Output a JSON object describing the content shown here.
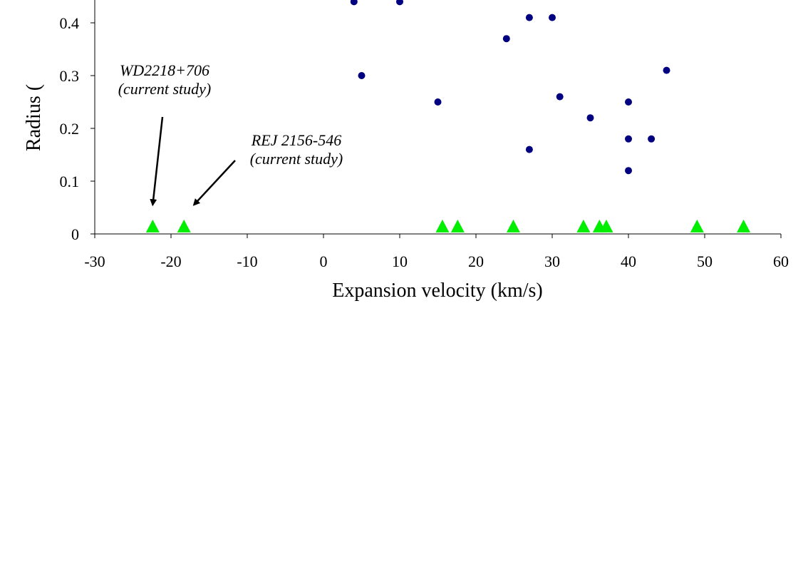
{
  "chart_data": {
    "type": "scatter",
    "title": "",
    "xlabel": "Expansion velocity (km/s)",
    "ylabel": "Radius (",
    "xlim": [
      -30,
      60
    ],
    "ylim": [
      0,
      0.45
    ],
    "x_ticks": [
      -30,
      -20,
      -10,
      0,
      10,
      20,
      30,
      40,
      50,
      60
    ],
    "x_tick_labels": [
      "-30",
      "-20",
      "-10",
      "0",
      "10",
      "20",
      "30",
      "40",
      "50",
      "60"
    ],
    "y_ticks": [
      0,
      0.1,
      0.2,
      0.3,
      0.4
    ],
    "y_tick_labels": [
      "0",
      "0.1",
      "0.2",
      "0.3",
      "0.4"
    ],
    "grid": false,
    "series": [
      {
        "marker": "circle",
        "color": "#000080",
        "x": [
          4,
          10,
          27,
          30,
          24,
          5,
          45,
          15,
          31,
          40,
          35,
          40,
          43,
          27,
          40
        ],
        "y": [
          0.44,
          0.44,
          0.41,
          0.41,
          0.37,
          0.3,
          0.31,
          0.25,
          0.26,
          0.25,
          0.22,
          0.18,
          0.18,
          0.16,
          0.12
        ]
      },
      {
        "marker": "triangle",
        "color": "#00ee00",
        "x": [
          -22.4,
          -18.3,
          15.6,
          17.6,
          24.9,
          34.1,
          36.2,
          37.1,
          49.0,
          55.1
        ],
        "y": [
          0.015,
          0.015,
          0.015,
          0.015,
          0.015,
          0.015,
          0.015,
          0.015,
          0.015,
          0.015
        ]
      }
    ],
    "annotations": [
      {
        "lines": [
          "WD2218+706",
          "(current study)"
        ],
        "target_x": -22.4,
        "target_y": 0.055
      },
      {
        "lines": [
          "REJ 2156-546",
          "(current study)"
        ],
        "target_x": -17.0,
        "target_y": 0.055
      }
    ]
  }
}
